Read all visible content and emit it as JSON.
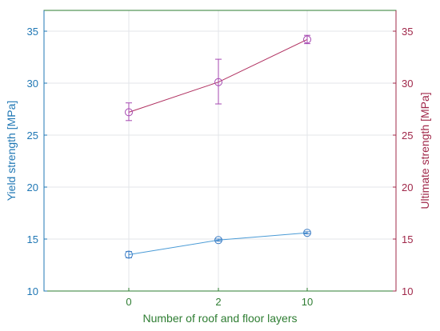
{
  "chart_data": {
    "type": "line",
    "xlabel": "Number of roof and floor layers",
    "categories": [
      "0",
      "2",
      "10"
    ],
    "left_axis": {
      "label": "Yield strength [MPa]",
      "ylim": [
        10,
        37
      ],
      "ticks": [
        10,
        15,
        20,
        25,
        30,
        35
      ],
      "color": "#1f77b4"
    },
    "right_axis": {
      "label": "Ultimate strength [MPa]",
      "ylim": [
        10,
        37
      ],
      "ticks": [
        10,
        15,
        20,
        25,
        30,
        35
      ],
      "color": "#a0284a"
    },
    "series": [
      {
        "axis": "left",
        "values": [
          13.5,
          14.9,
          15.6
        ],
        "err_low": [
          0.3,
          0.1,
          0.1
        ],
        "err_high": [
          0.3,
          0.1,
          0.1
        ],
        "color": "#3f7fc6",
        "line_color": "#4a9bd6"
      },
      {
        "axis": "right",
        "values": [
          27.2,
          30.1,
          34.2
        ],
        "err_low": [
          0.8,
          2.1,
          0.4
        ],
        "err_high": [
          0.9,
          2.2,
          0.4
        ],
        "color": "#a64ab2",
        "line_color": "#b03060"
      }
    ],
    "grid": true,
    "frame_color": "#2e7d32"
  }
}
